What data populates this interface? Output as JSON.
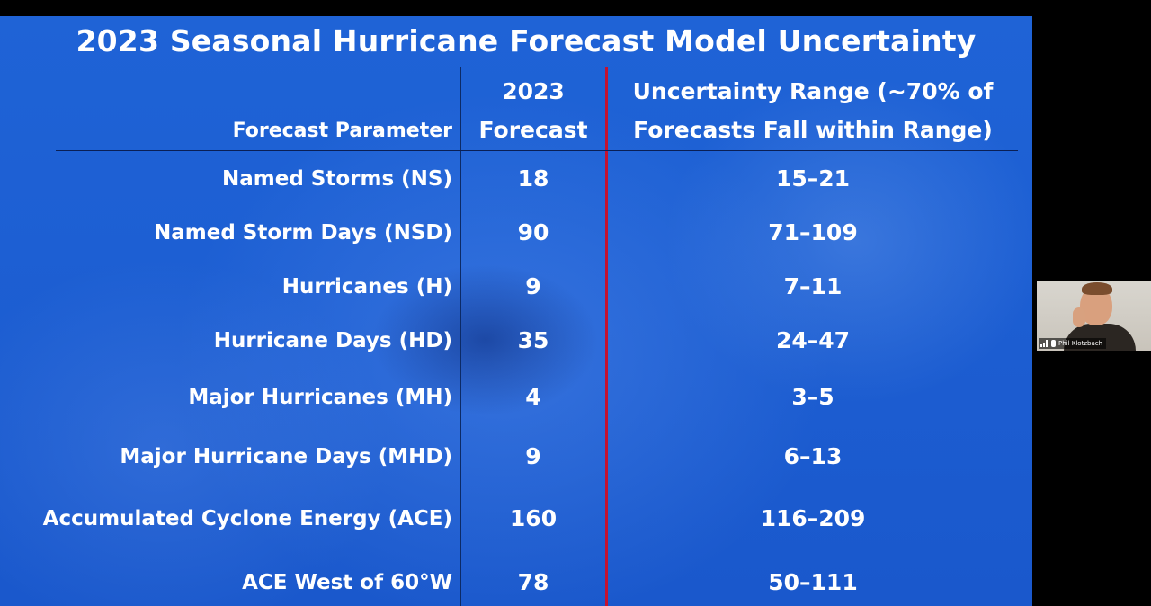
{
  "slide": {
    "title": "2023 Seasonal Hurricane Forecast Model Uncertainty",
    "headers": {
      "parameter": "Forecast Parameter",
      "forecast_line1": "2023",
      "forecast_line2": "Forecast",
      "range_line1": "Uncertainty Range (~70% of",
      "range_line2": "Forecasts Fall within Range)"
    },
    "rows": [
      {
        "parameter": "Named Storms (NS)",
        "forecast": "18",
        "range": "15–21"
      },
      {
        "parameter": "Named Storm Days (NSD)",
        "forecast": "90",
        "range": "71–109"
      },
      {
        "parameter": "Hurricanes (H)",
        "forecast": "9",
        "range": "7–11"
      },
      {
        "parameter": "Hurricane Days (HD)",
        "forecast": "35",
        "range": "24–47"
      },
      {
        "parameter": "Major Hurricanes (MH)",
        "forecast": "4",
        "range": "3–5"
      },
      {
        "parameter": "Major Hurricane Days (MHD)",
        "forecast": "9",
        "range": "6–13"
      },
      {
        "parameter": "Accumulated Cyclone Energy (ACE)",
        "forecast": "160",
        "range": "116–209"
      },
      {
        "parameter": "ACE West of 60°W",
        "forecast": "78",
        "range": "50–111"
      }
    ],
    "colors": {
      "background": "#1d5fd3",
      "text": "#ffffff",
      "divider": "#0c2a66",
      "accent_divider": "#c41230"
    }
  },
  "participant": {
    "name": "Phil Klotzbach",
    "icons": [
      "signal-strength-icon",
      "muted-mic-icon"
    ]
  }
}
